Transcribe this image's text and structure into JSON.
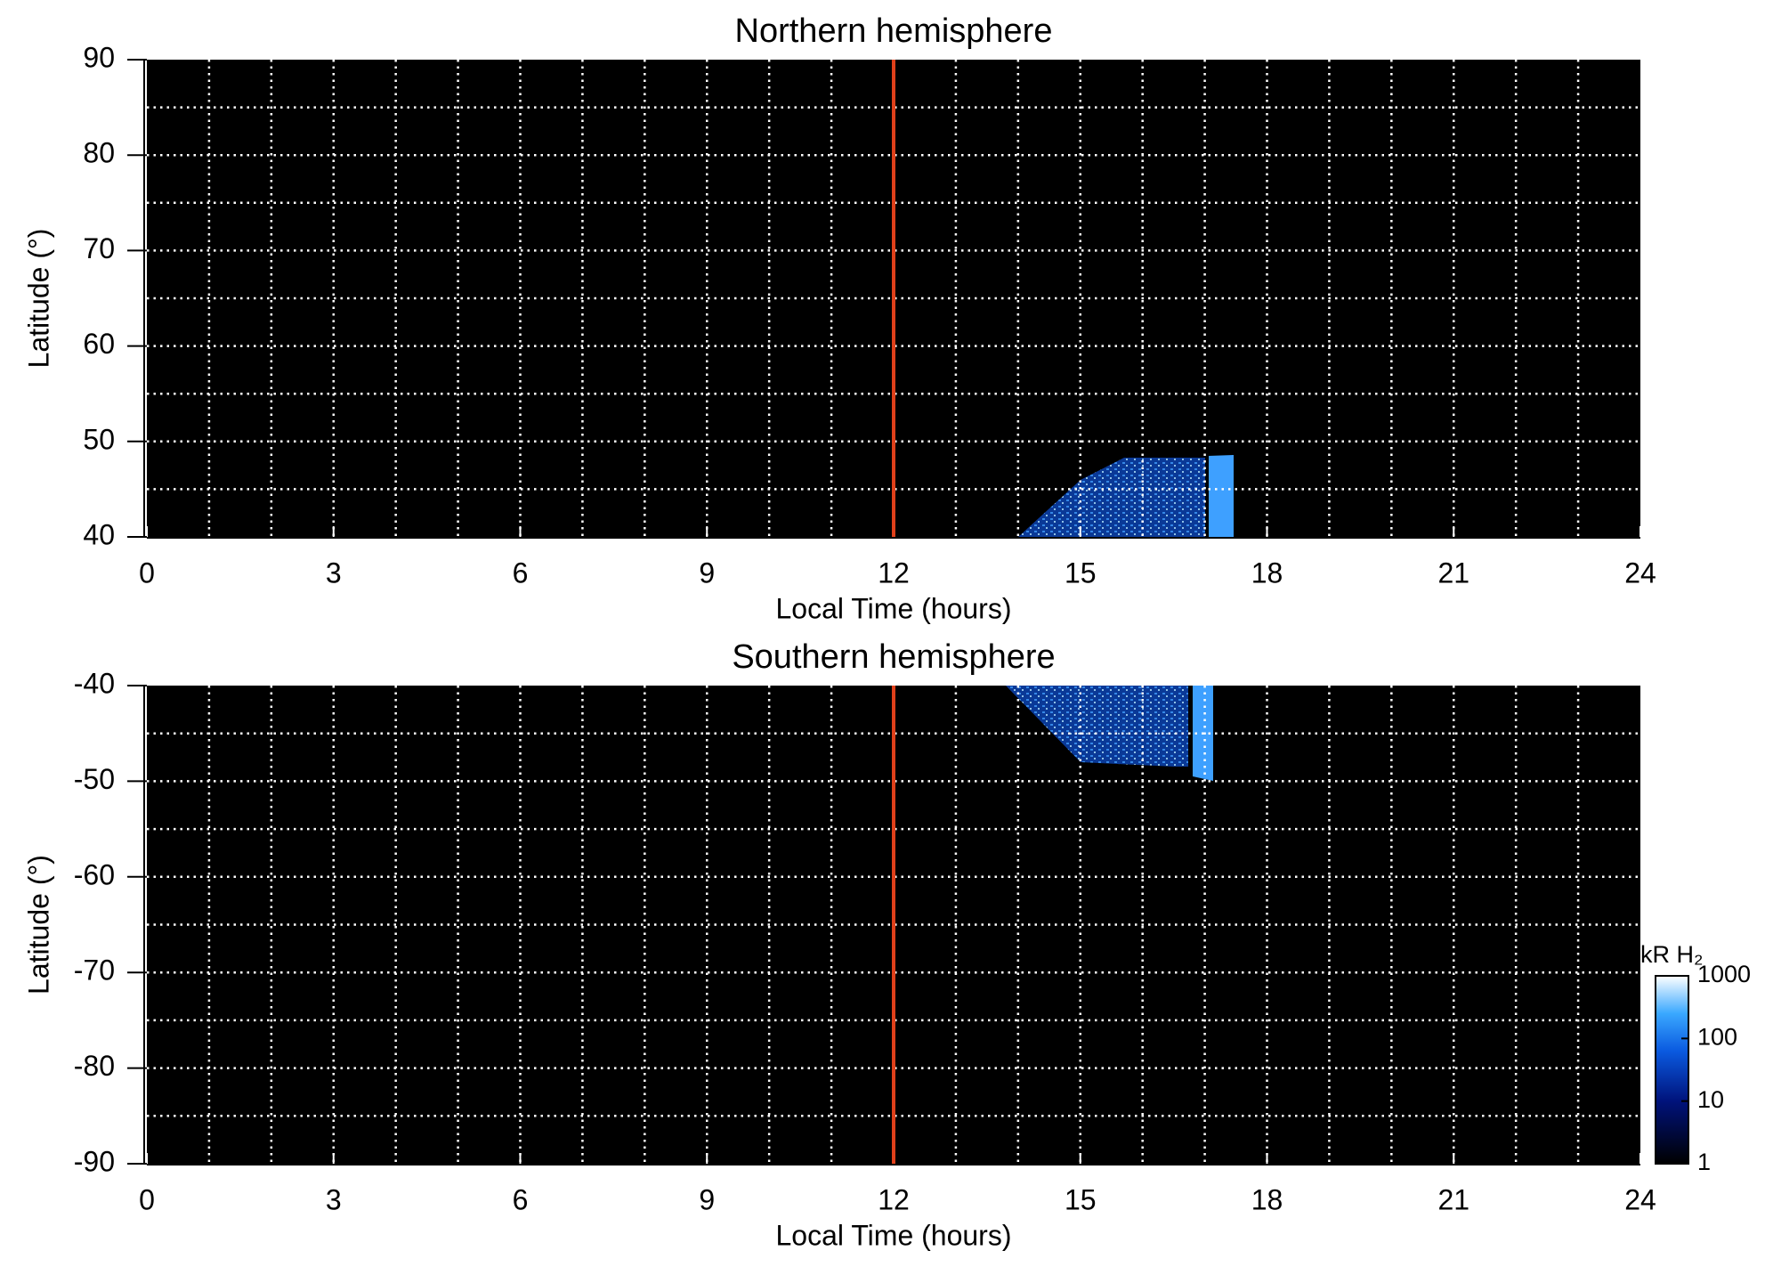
{
  "chart_data": [
    {
      "type": "heatmap",
      "title": "Northern hemisphere",
      "xlabel": "Local Time (hours)",
      "ylabel": "Latitude (°)",
      "xlim": [
        0,
        24
      ],
      "xticks": [
        0,
        3,
        6,
        9,
        12,
        15,
        18,
        21,
        24
      ],
      "ylim": [
        40,
        90
      ],
      "yticks": [
        40,
        50,
        60,
        70,
        80,
        90
      ],
      "xgrid": [
        1,
        2,
        3,
        4,
        5,
        6,
        7,
        8,
        9,
        10,
        11,
        12,
        13,
        14,
        15,
        16,
        17,
        18,
        19,
        20,
        21,
        22,
        23
      ],
      "ygrid": [
        45,
        50,
        55,
        60,
        65,
        70,
        75,
        80,
        85
      ],
      "grid": true,
      "vline": {
        "x": 12,
        "color": "#e0401a"
      }
    },
    {
      "type": "heatmap",
      "title": "Southern hemisphere",
      "xlabel": "Local Time (hours)",
      "ylabel": "Latitude (°)",
      "xlim": [
        0,
        24
      ],
      "xticks": [
        0,
        3,
        6,
        9,
        12,
        15,
        18,
        21,
        24
      ],
      "ylim": [
        -90,
        -40
      ],
      "yticks": [
        -90,
        -80,
        -70,
        -60,
        -50,
        -40
      ],
      "xgrid": [
        1,
        2,
        3,
        4,
        5,
        6,
        7,
        8,
        9,
        10,
        11,
        12,
        13,
        14,
        15,
        16,
        17,
        18,
        19,
        20,
        21,
        22,
        23
      ],
      "ygrid": [
        -85,
        -80,
        -75,
        -70,
        -65,
        -60,
        -55,
        -50,
        -45
      ],
      "grid": true,
      "vline": {
        "x": 12,
        "color": "#e0401a"
      },
      "colorbar": {
        "label": "kR H₂",
        "log": true,
        "lim": [
          1,
          1000
        ],
        "ticks": [
          1,
          10,
          100,
          1000
        ]
      }
    }
  ]
}
